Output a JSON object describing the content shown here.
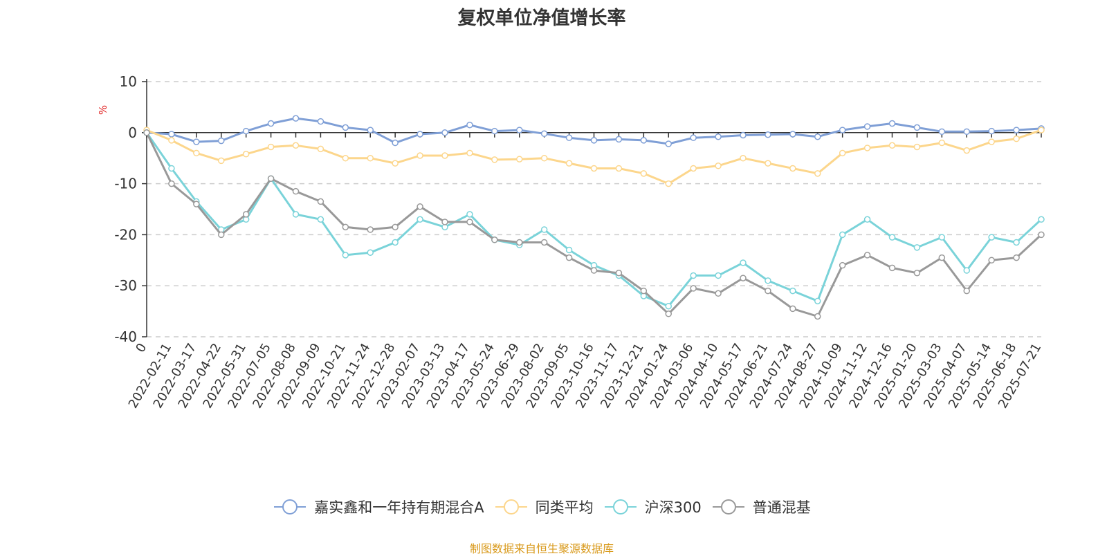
{
  "chart_data": {
    "type": "line",
    "title": "复权单位净值增长率",
    "ylabel": "%",
    "ylim": [
      -40,
      10
    ],
    "yticks": [
      10,
      0,
      -10,
      -20,
      -30,
      -40
    ],
    "grid": true,
    "legend_position": "bottom",
    "x_tick_labels": [
      "0",
      "2022-02-11",
      "2022-03-17",
      "2022-04-22",
      "2022-05-31",
      "2022-07-05",
      "2022-08-08",
      "2022-09-09",
      "2022-10-21",
      "2022-11-24",
      "2022-12-28",
      "2023-02-07",
      "2023-03-13",
      "2023-04-17",
      "2023-05-24",
      "2023-06-29",
      "2023-08-02",
      "2023-09-05",
      "2023-10-16",
      "2023-11-17",
      "2023-12-21",
      "2024-01-24",
      "2024-03-06",
      "2024-04-10",
      "2024-05-17",
      "2024-06-21",
      "2024-07-24",
      "2024-08-27",
      "2024-10-09",
      "2024-11-12",
      "2024-12-16",
      "2025-01-20",
      "2025-03-03",
      "2025-04-07",
      "2025-05-14",
      "2025-06-18",
      "2025-07-21"
    ],
    "series": [
      {
        "name": "嘉实鑫和一年持有期混合A",
        "color": "#7f9fd6",
        "values": [
          0,
          -0.3,
          -1.8,
          -1.6,
          0.3,
          1.8,
          2.8,
          2.2,
          1.0,
          0.5,
          -2.0,
          -0.3,
          0.0,
          1.5,
          0.3,
          0.5,
          -0.2,
          -1.0,
          -1.5,
          -1.3,
          -1.5,
          -2.2,
          -1.0,
          -0.8,
          -0.5,
          -0.4,
          -0.3,
          -0.8,
          0.5,
          1.2,
          1.8,
          1.0,
          0.2,
          0.2,
          0.3,
          0.5,
          0.8
        ]
      },
      {
        "name": "同类平均",
        "color": "#fcd68c",
        "values": [
          0.5,
          -1.5,
          -4.0,
          -5.5,
          -4.2,
          -2.8,
          -2.5,
          -3.2,
          -5.0,
          -5.0,
          -6.0,
          -4.5,
          -4.5,
          -4.0,
          -5.3,
          -5.2,
          -5.0,
          -6.0,
          -7.0,
          -7.0,
          -8.0,
          -10.0,
          -7.0,
          -6.5,
          -5.0,
          -6.0,
          -7.0,
          -8.0,
          -4.0,
          -3.0,
          -2.5,
          -2.8,
          -2.0,
          -3.5,
          -1.8,
          -1.2,
          0.5
        ]
      },
      {
        "name": "沪深300",
        "color": "#7ad3d9",
        "values": [
          0,
          -7.0,
          -13.5,
          -19.0,
          -17.0,
          -9.0,
          -16.0,
          -17.0,
          -24.0,
          -23.5,
          -21.5,
          -17.0,
          -18.5,
          -16.0,
          -21.0,
          -22.0,
          -19.0,
          -23.0,
          -26.0,
          -28.0,
          -32.0,
          -34.0,
          -28.0,
          -28.0,
          -25.5,
          -29.0,
          -31.0,
          -33.0,
          -20.0,
          -17.0,
          -20.5,
          -22.5,
          -20.5,
          -27.0,
          -20.5,
          -21.5,
          -17.0
        ]
      },
      {
        "name": "普通混基",
        "color": "#999999",
        "values": [
          0,
          -10.0,
          -14.0,
          -20.0,
          -16.0,
          -9.0,
          -11.5,
          -13.5,
          -18.5,
          -19.0,
          -18.5,
          -14.5,
          -17.5,
          -17.5,
          -21.0,
          -21.5,
          -21.5,
          -24.5,
          -27.0,
          -27.5,
          -31.0,
          -35.5,
          -30.5,
          -31.5,
          -28.5,
          -31.0,
          -34.5,
          -36.0,
          -26.0,
          -24.0,
          -26.5,
          -27.5,
          -24.5,
          -31.0,
          -25.0,
          -24.5,
          -20.0
        ]
      }
    ]
  },
  "footer": "制图数据来自恒生聚源数据库"
}
